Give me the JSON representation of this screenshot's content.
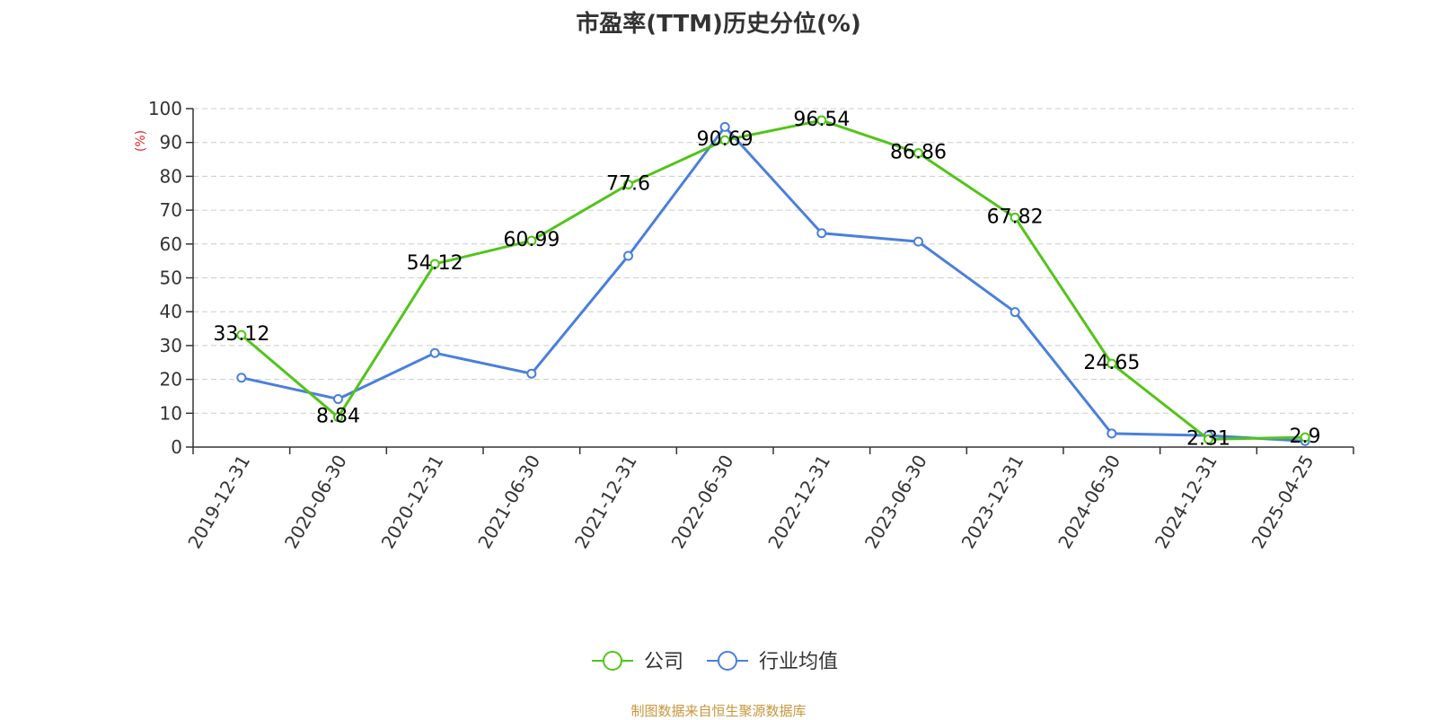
{
  "chart_data": {
    "type": "line",
    "title": "市盈率(TTM)历史分位(%)",
    "ylabel": "(%)",
    "xlabel": "",
    "ylim": [
      0,
      100
    ],
    "y_ticks": [
      0,
      10,
      20,
      30,
      40,
      50,
      60,
      70,
      80,
      90,
      100
    ],
    "grid": true,
    "legend_position": "bottom",
    "categories": [
      "2019-12-31",
      "2020-06-30",
      "2020-12-31",
      "2021-06-30",
      "2021-12-31",
      "2022-06-30",
      "2022-12-31",
      "2023-06-30",
      "2023-12-31",
      "2024-06-30",
      "2024-12-31",
      "2025-04-25"
    ],
    "series": [
      {
        "name": "公司",
        "color": "#52c41a",
        "values": [
          33.12,
          8.84,
          54.12,
          60.99,
          77.6,
          90.69,
          96.54,
          86.86,
          67.82,
          24.65,
          2.31,
          2.9
        ],
        "labels": [
          "33.12",
          "8.84",
          "54.12",
          "60.99",
          "77.6",
          "90.69",
          "96.54",
          "86.86",
          "67.82",
          "24.65",
          "2.31",
          "2.9"
        ]
      },
      {
        "name": "行业均值",
        "color": "#4a7fdc",
        "values": [
          20.5,
          14.2,
          27.8,
          21.7,
          56.5,
          94.6,
          63.2,
          60.7,
          39.9,
          4.0,
          3.4,
          1.8
        ]
      }
    ]
  },
  "source_note": {
    "text": "制图数据来自恒生聚源数据库",
    "color": "#c8963c"
  },
  "axis_label_color": "#e0262a"
}
